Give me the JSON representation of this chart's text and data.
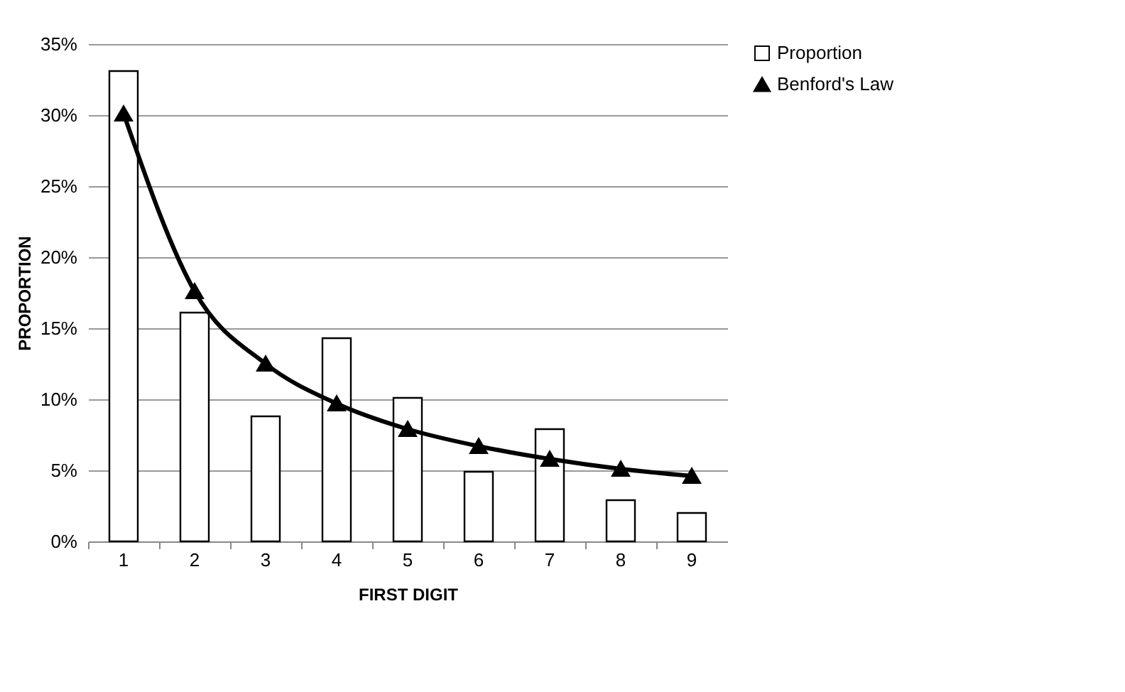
{
  "chart_data": {
    "type": "bar",
    "xlabel": "FIRST DIGIT",
    "ylabel": "PROPORTION",
    "categories": [
      "1",
      "2",
      "3",
      "4",
      "5",
      "6",
      "7",
      "8",
      "9"
    ],
    "series": [
      {
        "name": "Proportion",
        "color": "#ffffff",
        "values": [
          33.1,
          16.1,
          8.8,
          14.3,
          10.1,
          4.9,
          7.9,
          2.9,
          2.0
        ]
      },
      {
        "name": "Benford's Law",
        "type": "line",
        "color": "#000000",
        "marker": "triangle",
        "line_style": "solid",
        "values": [
          30.1,
          17.6,
          12.5,
          9.7,
          7.9,
          6.7,
          5.8,
          5.1,
          4.6
        ]
      }
    ],
    "ylim": [
      0,
      35
    ],
    "yticks": [
      {
        "value": 0,
        "label": "0%"
      },
      {
        "value": 5,
        "label": "5%"
      },
      {
        "value": 10,
        "label": "10%"
      },
      {
        "value": 15,
        "label": "15%"
      },
      {
        "value": 20,
        "label": "20%"
      },
      {
        "value": 25,
        "label": "25%"
      },
      {
        "value": 30,
        "label": "30%"
      },
      {
        "value": 35,
        "label": "35%"
      }
    ],
    "grid": "y",
    "legend": "right"
  }
}
